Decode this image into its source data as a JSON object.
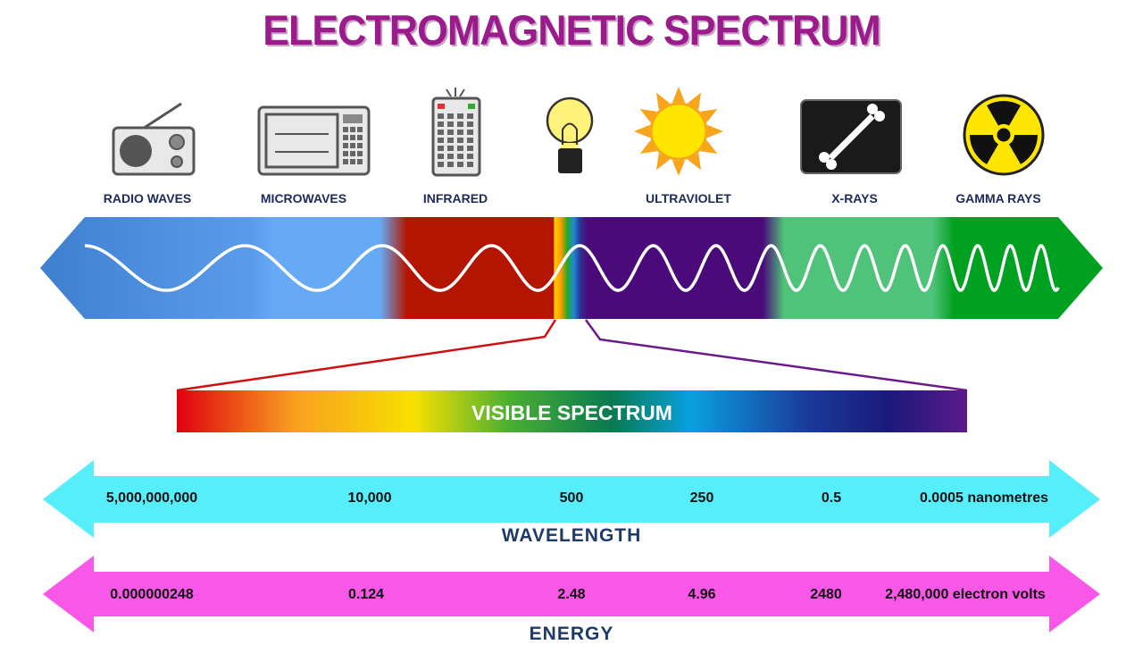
{
  "title": "ELECTROMAGNETIC SPECTRUM",
  "bands": [
    {
      "label": "RADIO WAVES",
      "icon": "radio-icon"
    },
    {
      "label": "MICROWAVES",
      "icon": "microwave-icon"
    },
    {
      "label": "INFRARED",
      "icon": "remote-control-icon"
    },
    {
      "label": "",
      "icon": "light-bulb-icon"
    },
    {
      "label": "ULTRAVIOLET",
      "icon": "sun-icon"
    },
    {
      "label": "X-RAYS",
      "icon": "bone-xray-icon"
    },
    {
      "label": "GAMMA RAYS",
      "icon": "radiation-icon"
    }
  ],
  "visible_spectrum": {
    "label": "VISIBLE SPECTRUM"
  },
  "wavelength": {
    "title": "WAVELENGTH",
    "ticks": [
      "5,000,000,000",
      "10,000",
      "500",
      "250",
      "0.5",
      "0.0005 nanometres"
    ],
    "color": "#55eefa"
  },
  "energy": {
    "title": "ENERGY",
    "ticks": [
      "0.000000248",
      "0.124",
      "2.48",
      "4.96",
      "2480",
      "2,480,000 electron volts"
    ],
    "color": "#f857e8"
  },
  "colors": {
    "title": "#9b1a8c",
    "radio": "#5fa5f2",
    "infrared": "#b31500",
    "ultraviolet": "#4b0a7a",
    "xray": "#4fc37a",
    "gamma": "#00a020"
  }
}
